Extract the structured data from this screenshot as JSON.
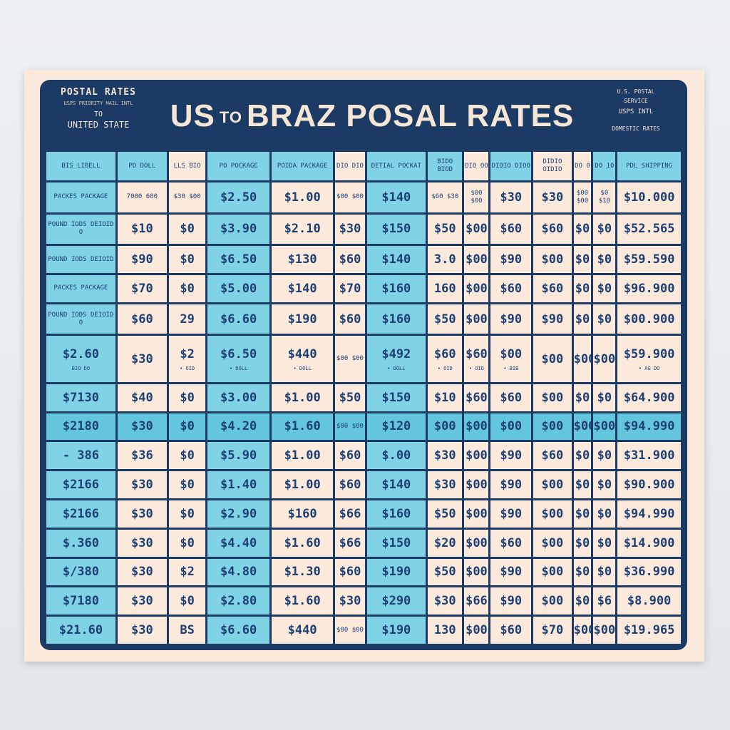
{
  "header": {
    "left_line1": "POSTAL RATES",
    "left_line2": "USPS PRIORITY MAIL INTL",
    "left_line3": "TO",
    "left_line4": "UNITED STATE",
    "title_part1": "US",
    "title_part2": "TO",
    "title_part3": "BRAZ POSAL RATES",
    "right_line1": "U.S. POSTAL",
    "right_line2": "SERVICE",
    "right_line3": "USPS INTL",
    "right_line4": "DOMESTIC RATES"
  },
  "columns": [
    {
      "label": "BIS LIBELL"
    },
    {
      "label": "PD DOLL"
    },
    {
      "label": "LLS BIO"
    },
    {
      "label": "PO POCKAGE"
    },
    {
      "label": "POIDA PACKAGE"
    },
    {
      "label": "DIO DIO"
    },
    {
      "label": "DETIAL POCKAT"
    },
    {
      "label": "BIDO BIOD"
    },
    {
      "label": "DIO OO"
    },
    {
      "label": "DIDIO DIOO"
    },
    {
      "label": "DIDIO OIDIO"
    },
    {
      "label": "DO 0"
    },
    {
      "label": "DO 10"
    },
    {
      "label": "PDL SHIPPING"
    }
  ],
  "rows": [
    {
      "cells": [
        "PACKES PACKAGE",
        "7000 600",
        "$30 $00",
        "$2.50",
        "$1.00",
        "$00 $00",
        "$140",
        "$60 $30",
        "$00 $00",
        "$30",
        "$30",
        "$00 $00",
        "$0 $10",
        "$10.000"
      ]
    },
    {
      "cells": [
        "POUND IODS DEIOID O",
        "$10",
        "$0",
        "$3.90",
        "$2.10",
        "$30",
        "$150",
        "$50",
        "$00",
        "$60",
        "$60",
        "$0",
        "$0",
        "$52.565"
      ]
    },
    {
      "cells": [
        "POUND IODS DEIOID",
        "$90",
        "$0",
        "$6.50",
        "$130",
        "$60",
        "$140",
        "3.0",
        "$00",
        "$90",
        "$00",
        "$0",
        "$0",
        "$59.590"
      ]
    },
    {
      "cells": [
        "PACKES PACKAGE",
        "$70",
        "$0",
        "$5.00",
        "$140",
        "$70",
        "$160",
        "160",
        "$00",
        "$60",
        "$60",
        "$0",
        "$0",
        "$96.900"
      ]
    },
    {
      "cells": [
        "POUND IODS DEIOID O",
        "$60",
        "29",
        "$6.60",
        "$190",
        "$60",
        "$160",
        "$50",
        "$00",
        "$90",
        "$90",
        "$0",
        "$0",
        "$00.900"
      ]
    },
    {
      "cells": [
        "$2.60",
        "$30",
        "$2",
        "$6.50",
        "$440",
        "$00 $00",
        "$492",
        "$60",
        "$60",
        "$00",
        "$00",
        "$00",
        "$00",
        "$59.900"
      ],
      "subs": [
        "BIO DO",
        "",
        "• OID",
        "• DOLL",
        "• DOLL",
        "",
        "• DOLL",
        "• OID",
        "• OID",
        "• BIB",
        "",
        "",
        "",
        "• AG DO"
      ]
    },
    {
      "cells": [
        "$7130",
        "$40",
        "$0",
        "$3.00",
        "$1.00",
        "$50",
        "$150",
        "$10",
        "$60",
        "$60",
        "$00",
        "$0",
        "$0",
        "$64.900"
      ]
    },
    {
      "cells": [
        "$2180",
        "$30",
        "$0",
        "$4.20",
        "$1.60",
        "$00 $00",
        "$120",
        "$00",
        "$00",
        "$00",
        "$00",
        "$00",
        "$00",
        "$94.990"
      ],
      "highlight": true
    },
    {
      "cells": [
        "- 386",
        "$36",
        "$0",
        "$5.90",
        "$1.00",
        "$60",
        "$.00",
        "$30",
        "$00",
        "$90",
        "$60",
        "$0",
        "$0",
        "$31.900"
      ]
    },
    {
      "cells": [
        "$2166",
        "$30",
        "$0",
        "$1.40",
        "$1.00",
        "$60",
        "$140",
        "$30",
        "$00",
        "$90",
        "$00",
        "$0",
        "$0",
        "$90.900"
      ]
    },
    {
      "cells": [
        "$2166",
        "$30",
        "$0",
        "$2.90",
        "$160",
        "$66",
        "$160",
        "$50",
        "$00",
        "$90",
        "$00",
        "$0",
        "$0",
        "$94.990"
      ]
    },
    {
      "cells": [
        "$.360",
        "$30",
        "$0",
        "$4.40",
        "$1.60",
        "$66",
        "$150",
        "$20",
        "$00",
        "$60",
        "$00",
        "$0",
        "$0",
        "$14.900"
      ]
    },
    {
      "cells": [
        "$/380",
        "$30",
        "$2",
        "$4.80",
        "$1.30",
        "$60",
        "$190",
        "$50",
        "$00",
        "$90",
        "$00",
        "$0",
        "$0",
        "$36.990"
      ]
    },
    {
      "cells": [
        "$7180",
        "$30",
        "$0",
        "$2.80",
        "$1.60",
        "$30",
        "$290",
        "$30",
        "$66",
        "$90",
        "$00",
        "$0",
        "$6",
        "$8.900"
      ]
    },
    {
      "cells": [
        "$21.60",
        "$30",
        "BS",
        "$6.60",
        "$440",
        "$00 $00",
        "$190",
        "130",
        "$00",
        "$60",
        "$70",
        "$00",
        "$00",
        "$19.965"
      ]
    }
  ],
  "colors": {
    "card": "#fbe9dc",
    "panel": "#1b3a64",
    "teal": "#7fd3e4",
    "highlight": "#63c6dc",
    "text": "#1d3f73"
  }
}
